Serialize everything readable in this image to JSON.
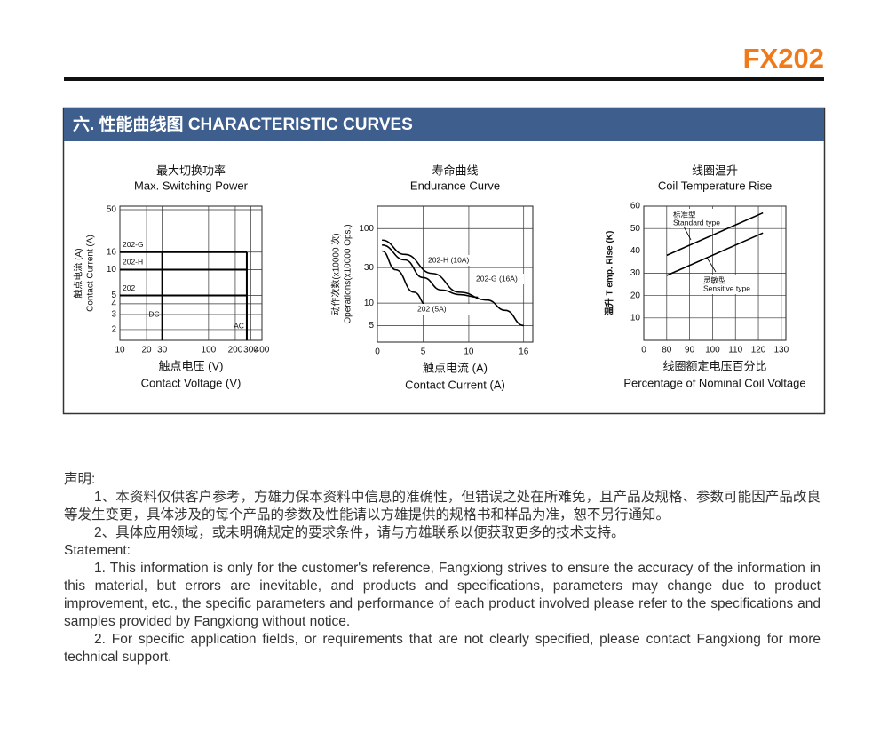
{
  "header": {
    "model": "FX202"
  },
  "section": {
    "title": "六. 性能曲线图 CHARACTERISTIC CURVES"
  },
  "chart_data": [
    {
      "type": "line",
      "title_cn": "最大切换功率",
      "title": "Max. Switching Power",
      "xlabel_cn": "触点电压 (V)",
      "xlabel": "Contact Voltage (V)",
      "ylabel_cn": "触点电流 (A)",
      "ylabel": "Contact Current (A)",
      "xscale": "log",
      "yscale": "log",
      "grid": true,
      "xlim": [
        10,
        400
      ],
      "ylim": [
        1.5,
        55
      ],
      "xticks": [
        10,
        20,
        30,
        100,
        200,
        300,
        400
      ],
      "yticks": [
        2,
        3,
        4,
        5,
        10,
        16,
        50
      ],
      "series": [
        {
          "name": "202-G",
          "color": "#000000",
          "x": [
            10,
            270
          ],
          "values": [
            16,
            16
          ]
        },
        {
          "name": "202-H",
          "color": "#000000",
          "x": [
            10,
            270
          ],
          "values": [
            10,
            10
          ]
        },
        {
          "name": "202",
          "color": "#000000",
          "x": [
            10,
            270
          ],
          "values": [
            5,
            5
          ]
        },
        {
          "name": "DC",
          "color": "#000000",
          "x": [
            30,
            30
          ],
          "values": [
            1.5,
            16
          ]
        },
        {
          "name": "AC",
          "color": "#000000",
          "x": [
            270,
            270
          ],
          "values": [
            1.5,
            16
          ]
        }
      ]
    },
    {
      "type": "line",
      "title_cn": "寿命曲线",
      "title": "Endurance Curve",
      "xlabel_cn": "触点电流 (A)",
      "xlabel": "Contact Current (A)",
      "ylabel_cn": "动作次数(x10000 次)",
      "ylabel": "Operations(x10000 Ops.)",
      "xscale": "linear",
      "yscale": "log",
      "grid": true,
      "xlim": [
        0,
        17
      ],
      "ylim": [
        3,
        200
      ],
      "xticks": [
        0,
        5,
        10,
        16
      ],
      "yticks": [
        5,
        10,
        30,
        100
      ],
      "series": [
        {
          "name": "202-H (10A)",
          "color": "#000000",
          "x": [
            0.5,
            3,
            5,
            7,
            9,
            11
          ],
          "values": [
            60,
            38,
            22,
            15,
            13,
            12
          ]
        },
        {
          "name": "202-G (16A)",
          "color": "#000000",
          "x": [
            0.5,
            3,
            6,
            9,
            12,
            14,
            16
          ],
          "values": [
            70,
            45,
            25,
            14,
            11,
            8,
            5
          ]
        },
        {
          "name": "202 (5A)",
          "color": "#000000",
          "x": [
            0.5,
            2,
            4,
            5.5
          ],
          "values": [
            50,
            28,
            14,
            9
          ]
        }
      ]
    },
    {
      "type": "line",
      "title_cn": "线圈温升",
      "title": "Coil Temperature Rise",
      "xlabel_cn": "线圈额定电压百分比",
      "xlabel": "Percentage of Nominal Coil Voltage",
      "ylabel": "温升 T emp. Rise (K)",
      "xscale": "linear",
      "yscale": "linear",
      "grid": true,
      "xlim": [
        70,
        132
      ],
      "ylim": [
        0,
        60
      ],
      "x_origin_label": "0",
      "xticks": [
        80,
        90,
        100,
        110,
        120,
        130
      ],
      "yticks": [
        10,
        20,
        30,
        40,
        50,
        60
      ],
      "series": [
        {
          "name_cn": "标准型",
          "name": "Standard type",
          "color": "#000000",
          "x": [
            80,
            122
          ],
          "values": [
            38,
            57
          ]
        },
        {
          "name_cn": "灵敏型",
          "name": "Sensitive type",
          "color": "#000000",
          "x": [
            80,
            122
          ],
          "values": [
            29,
            48
          ]
        }
      ]
    }
  ],
  "statement": {
    "title_cn": "声明:",
    "items_cn": [
      "1、本资料仅供客户参考，方雄力保本资料中信息的准确性，但错误之处在所难免，且产品及规格、参数可能因产品改良等发生变更，具体涉及的每个产品的参数及性能请以方雄提供的规格书和样品为准，恕不另行通知。",
      "2、具体应用领域，或未明确规定的要求条件，请与方雄联系以便获取更多的技术支持。"
    ],
    "title_en": "Statement:",
    "items_en": [
      "1. This information is only for the customer's reference, Fangxiong strives to ensure the accuracy of the information in this material, but errors are inevitable, and products and specifications, parameters may change due to product improvement, etc., the specific parameters and performance of each product involved please refer to the specifications and samples provided by Fangxiong without notice.",
      "2. For specific application fields, or requirements that are not clearly specified, please contact Fangxiong for more technical support."
    ]
  }
}
